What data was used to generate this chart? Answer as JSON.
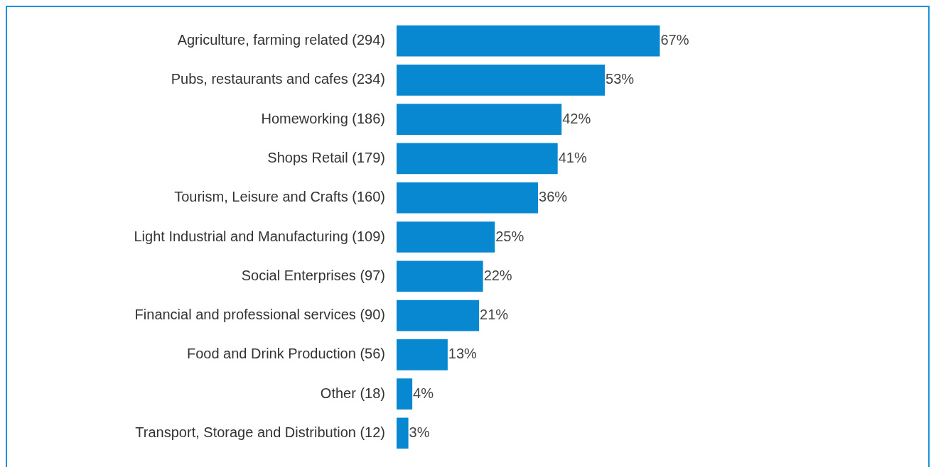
{
  "chart_data": {
    "type": "bar",
    "orientation": "horizontal",
    "categories": [
      "Agriculture, farming related (294)",
      "Pubs, restaurants and cafes (234)",
      "Homeworking (186)",
      "Shops Retail (179)",
      "Tourism, Leisure and Crafts (160)",
      "Light Industrial and Manufacturing (109)",
      "Social Enterprises (97)",
      "Financial and professional services (90)",
      "Food and Drink Production (56)",
      "Other (18)",
      "Transport, Storage and Distribution (12)"
    ],
    "values": [
      67,
      53,
      42,
      41,
      36,
      25,
      22,
      21,
      13,
      4,
      3
    ],
    "value_labels": [
      "67%",
      "53%",
      "42%",
      "41%",
      "36%",
      "25%",
      "22%",
      "21%",
      "13%",
      "4%",
      "3%"
    ],
    "color": "#0788d0",
    "grid": false,
    "legend": false,
    "tick_labels": "y"
  }
}
